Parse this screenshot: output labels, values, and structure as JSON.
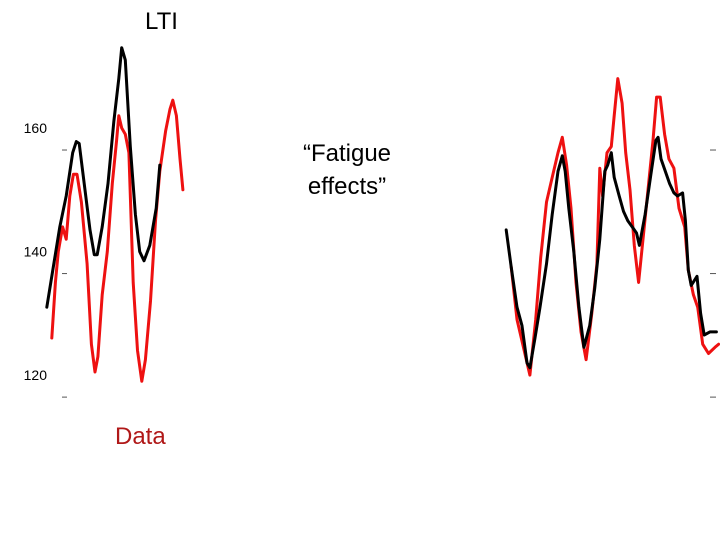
{
  "chart_data": {
    "type": "line",
    "title": "",
    "xlabel": "",
    "ylabel": "",
    "ylim": [
      115,
      177
    ],
    "xlim": [
      0,
      100
    ],
    "grid": false,
    "yticks": [
      {
        "value": 160,
        "label": "160"
      },
      {
        "value": 140,
        "label": "140"
      },
      {
        "value": 120,
        "label": "120"
      }
    ],
    "annotations": {
      "fatigue_line1": "“Fatigue",
      "fatigue_line2": "effects”",
      "lti_label": "LTI",
      "data_label": "Data"
    },
    "colors": {
      "lti": "#000000",
      "data": "#ee1111"
    },
    "series": [
      {
        "key": "lti",
        "segments": [
          [
            [
              6.5,
              131
            ],
            [
              7.4,
              137.5
            ],
            [
              8.3,
              144
            ],
            [
              9.2,
              149
            ],
            [
              10.1,
              156
            ],
            [
              10.6,
              157.8
            ],
            [
              11,
              157.5
            ],
            [
              11.7,
              151
            ],
            [
              12.5,
              143.5
            ],
            [
              13.1,
              139.5
            ],
            [
              13.5,
              139.5
            ],
            [
              14.2,
              144
            ],
            [
              15,
              151
            ],
            [
              15.8,
              161
            ],
            [
              16.5,
              168
            ],
            [
              16.9,
              173
            ],
            [
              17.4,
              171
            ],
            [
              18.1,
              157
            ],
            [
              18.8,
              146
            ],
            [
              19.4,
              140
            ],
            [
              20,
              138.5
            ],
            [
              20.8,
              141
            ],
            [
              21.7,
              147
            ],
            [
              22.2,
              154
            ]
          ],
          [
            [
              70.3,
              143.5
            ],
            [
              71,
              137.5
            ],
            [
              71.8,
              131
            ],
            [
              72.5,
              128
            ],
            [
              73.2,
              122
            ],
            [
              73.6,
              121.2
            ],
            [
              74.3,
              126
            ],
            [
              75,
              131
            ],
            [
              75.9,
              138
            ],
            [
              76.7,
              146
            ],
            [
              77.5,
              153
            ],
            [
              78.1,
              155.5
            ],
            [
              78.5,
              153
            ],
            [
              79,
              147
            ],
            [
              79.7,
              140
            ],
            [
              80.4,
              131
            ],
            [
              81.1,
              124.5
            ],
            [
              81.9,
              128
            ],
            [
              82.6,
              134
            ],
            [
              83.3,
              142
            ],
            [
              84,
              153
            ],
            [
              84.4,
              154
            ],
            [
              84.9,
              156
            ],
            [
              85.3,
              152
            ],
            [
              86,
              149
            ],
            [
              86.6,
              146.5
            ],
            [
              87.2,
              145
            ],
            [
              87.8,
              144
            ],
            [
              88.4,
              143
            ],
            [
              88.8,
              141
            ],
            [
              89.6,
              146
            ],
            [
              90.4,
              152.5
            ],
            [
              91.1,
              158
            ],
            [
              91.4,
              158.5
            ],
            [
              91.8,
              155
            ],
            [
              92.4,
              153
            ],
            [
              93,
              151
            ],
            [
              93.6,
              149.5
            ],
            [
              94.1,
              149
            ],
            [
              94.8,
              149.5
            ],
            [
              95.2,
              145
            ],
            [
              95.6,
              137
            ],
            [
              96,
              134.5
            ],
            [
              96.8,
              136
            ],
            [
              97.3,
              130
            ],
            [
              97.8,
              126.5
            ],
            [
              98.6,
              127
            ],
            [
              99.5,
              127
            ]
          ]
        ]
      },
      {
        "key": "data",
        "segments": [
          [
            [
              7.2,
              126
            ],
            [
              7.7,
              135
            ],
            [
              8.1,
              140
            ],
            [
              8.7,
              144
            ],
            [
              9.2,
              142
            ],
            [
              9.7,
              149
            ],
            [
              10.2,
              152.5
            ],
            [
              10.7,
              152.5
            ],
            [
              11.3,
              148
            ],
            [
              12.1,
              138
            ],
            [
              12.7,
              125
            ],
            [
              13.2,
              120.5
            ],
            [
              13.6,
              123
            ],
            [
              14.2,
              133
            ],
            [
              14.9,
              140
            ],
            [
              15.6,
              151
            ],
            [
              16.2,
              158
            ],
            [
              16.5,
              162
            ],
            [
              16.9,
              160
            ],
            [
              17.4,
              159
            ],
            [
              17.9,
              156
            ],
            [
              18.5,
              135
            ],
            [
              19.1,
              124
            ],
            [
              19.7,
              119
            ],
            [
              20.2,
              122.5
            ],
            [
              20.9,
              132
            ],
            [
              21.6,
              145
            ],
            [
              22.2,
              153
            ],
            [
              23,
              159.5
            ],
            [
              23.6,
              163
            ],
            [
              24,
              164.5
            ],
            [
              24.5,
              162
            ],
            [
              25,
              155
            ],
            [
              25.4,
              150
            ]
          ],
          [
            [
              71,
              137.5
            ],
            [
              71.8,
              129
            ],
            [
              72.4,
              126
            ],
            [
              73,
              123
            ],
            [
              73.6,
              120
            ],
            [
              74.4,
              129
            ],
            [
              75.1,
              139
            ],
            [
              75.9,
              148
            ],
            [
              76.7,
              152
            ],
            [
              77.5,
              156
            ],
            [
              78.1,
              158.5
            ],
            [
              78.7,
              154
            ],
            [
              79.3,
              147
            ],
            [
              80,
              135
            ],
            [
              80.7,
              127
            ],
            [
              81.4,
              122.5
            ],
            [
              82.2,
              130
            ],
            [
              82.9,
              138
            ],
            [
              83.3,
              153.5
            ],
            [
              83.7,
              149
            ],
            [
              84.3,
              156
            ],
            [
              84.9,
              157
            ],
            [
              85.3,
              162
            ],
            [
              85.8,
              168
            ],
            [
              86.4,
              164
            ],
            [
              86.9,
              156
            ],
            [
              87.5,
              150
            ],
            [
              88.1,
              141
            ],
            [
              88.7,
              135
            ],
            [
              89.3,
              142
            ],
            [
              90,
              150
            ],
            [
              90.7,
              158
            ],
            [
              91.2,
              165
            ],
            [
              91.7,
              165
            ],
            [
              92.3,
              159
            ],
            [
              92.9,
              155
            ],
            [
              93.6,
              153.5
            ],
            [
              94.3,
              147
            ],
            [
              95.1,
              144
            ],
            [
              95.6,
              137
            ],
            [
              96.3,
              133
            ],
            [
              96.9,
              131
            ],
            [
              97.6,
              125
            ],
            [
              98.4,
              123.5
            ],
            [
              99.3,
              124.5
            ],
            [
              99.8,
              125
            ]
          ]
        ]
      }
    ]
  }
}
